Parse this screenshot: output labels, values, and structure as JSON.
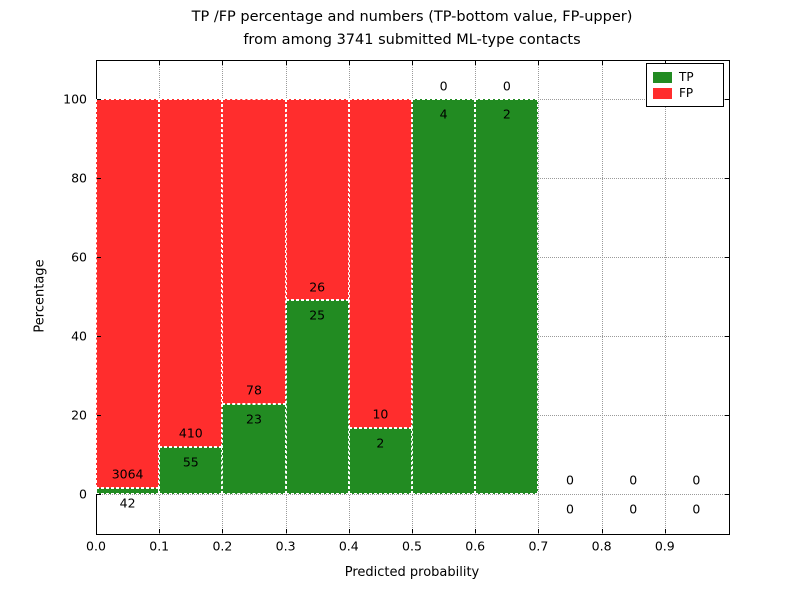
{
  "chart_data": {
    "type": "bar",
    "stacked": true,
    "title_line1": "TP /FP percentage and numbers (TP-bottom value, FP-upper)",
    "title_line2": "from among 3741 submitted ML-type contacts",
    "xlabel": "Predicted probability",
    "ylabel": "Percentage",
    "xlim": [
      0.0,
      1.0
    ],
    "ylim": [
      -10,
      110
    ],
    "xticks": [
      "0.0",
      "0.1",
      "0.2",
      "0.3",
      "0.4",
      "0.5",
      "0.6",
      "0.7",
      "0.8",
      "0.9"
    ],
    "yticks": [
      "0",
      "20",
      "40",
      "60",
      "80",
      "100"
    ],
    "grid": true,
    "legend": {
      "position": "upper right",
      "entries": [
        {
          "label": "TP",
          "color": "#228B22"
        },
        {
          "label": "FP",
          "color": "#FF2D2D"
        }
      ]
    },
    "bins": [
      {
        "x_start": 0.0,
        "x_end": 0.1,
        "tp_count": 42,
        "fp_count": 3064,
        "tp_pct": 1.35,
        "fp_pct": 98.65
      },
      {
        "x_start": 0.1,
        "x_end": 0.2,
        "tp_count": 55,
        "fp_count": 410,
        "tp_pct": 11.83,
        "fp_pct": 88.17
      },
      {
        "x_start": 0.2,
        "x_end": 0.3,
        "tp_count": 23,
        "fp_count": 78,
        "tp_pct": 22.77,
        "fp_pct": 77.23
      },
      {
        "x_start": 0.3,
        "x_end": 0.4,
        "tp_count": 25,
        "fp_count": 26,
        "tp_pct": 49.02,
        "fp_pct": 50.98
      },
      {
        "x_start": 0.4,
        "x_end": 0.5,
        "tp_count": 2,
        "fp_count": 10,
        "tp_pct": 16.67,
        "fp_pct": 83.33
      },
      {
        "x_start": 0.5,
        "x_end": 0.6,
        "tp_count": 4,
        "fp_count": 0,
        "tp_pct": 100,
        "fp_pct": 0
      },
      {
        "x_start": 0.6,
        "x_end": 0.7,
        "tp_count": 2,
        "fp_count": 0,
        "tp_pct": 100,
        "fp_pct": 0
      },
      {
        "x_start": 0.7,
        "x_end": 0.8,
        "tp_count": 0,
        "fp_count": 0,
        "tp_pct": 0,
        "fp_pct": 0
      },
      {
        "x_start": 0.8,
        "x_end": 0.9,
        "tp_count": 0,
        "fp_count": 0,
        "tp_pct": 0,
        "fp_pct": 0
      },
      {
        "x_start": 0.9,
        "x_end": 1.0,
        "tp_count": 0,
        "fp_count": 0,
        "tp_pct": 0,
        "fp_pct": 0
      }
    ],
    "colors": {
      "tp": "#228B22",
      "fp": "#FF2D2D",
      "grid": "#9a9a9a",
      "bar_edge": "#FFFFFF",
      "axis": "#000000",
      "label_text": "#000000"
    }
  }
}
